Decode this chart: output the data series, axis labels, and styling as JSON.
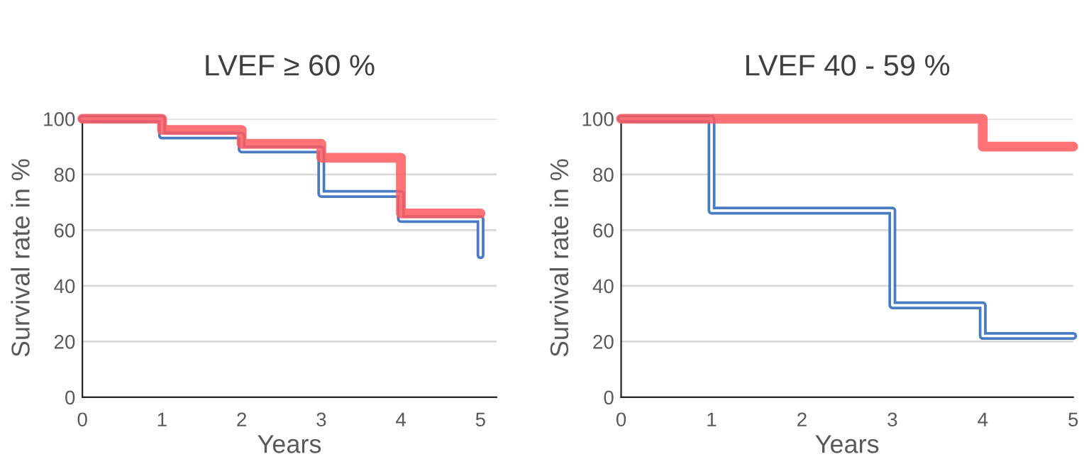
{
  "chart_data": [
    {
      "type": "step",
      "title": "LVEF ≥ 60 %",
      "xlabel": "Years",
      "ylabel": "Survival rate in %",
      "xlim": [
        0,
        5.2
      ],
      "xticks": [
        0,
        1,
        2,
        3,
        4,
        5
      ],
      "ylim": [
        0,
        100
      ],
      "yticks": [
        0,
        20,
        40,
        60,
        80,
        100
      ],
      "grid": "y",
      "legend": false,
      "series": [
        {
          "color": "#ff5a5f",
          "x": [
            0,
            1,
            2,
            3,
            4,
            5
          ],
          "values": [
            100,
            96,
            91,
            86,
            66,
            66
          ]
        },
        {
          "color": "#4a7cc4",
          "x": [
            0,
            1,
            2,
            3,
            4,
            5
          ],
          "values": [
            100,
            94,
            89,
            73,
            64,
            51
          ]
        }
      ]
    },
    {
      "type": "step",
      "title": "LVEF 40 - 59 %",
      "xlabel": "Years",
      "ylabel": "Survival rate in %",
      "xlim": [
        0,
        5
      ],
      "xticks": [
        0,
        1,
        2,
        3,
        4,
        5
      ],
      "ylim": [
        0,
        100
      ],
      "yticks": [
        0,
        20,
        40,
        60,
        80,
        100
      ],
      "grid": "y",
      "legend": false,
      "series": [
        {
          "color": "#ff5a5f",
          "x": [
            0,
            1,
            2,
            3,
            4,
            5
          ],
          "values": [
            100,
            100,
            100,
            100,
            90,
            90
          ]
        },
        {
          "color": "#4a7cc4",
          "x": [
            0,
            1,
            3,
            4,
            5
          ],
          "values": [
            100,
            67,
            33,
            22,
            22
          ]
        }
      ]
    }
  ]
}
